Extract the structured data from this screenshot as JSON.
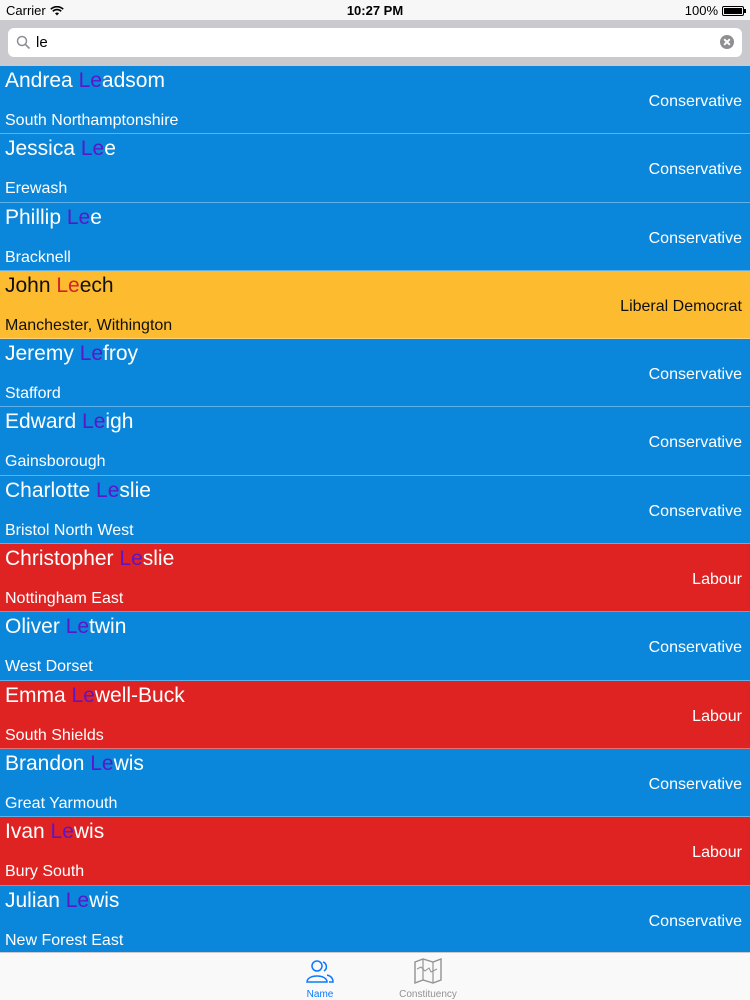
{
  "status": {
    "carrier": "Carrier",
    "time": "10:27 PM",
    "battery": "100%",
    "battery_level": 1.0
  },
  "search": {
    "query": "le"
  },
  "party_colors": {
    "Conservative": "#0a87da",
    "Labour": "#df2323",
    "Liberal Democrat": "#fdbb30"
  },
  "results": [
    {
      "name_pre": "Andrea ",
      "name_hl": "Le",
      "name_post": "adsom",
      "party": "Conservative",
      "constituency": "South Northamptonshire"
    },
    {
      "name_pre": "Jessica ",
      "name_hl": "Le",
      "name_post": "e",
      "party": "Conservative",
      "constituency": "Erewash"
    },
    {
      "name_pre": "Phillip ",
      "name_hl": "Le",
      "name_post": "e",
      "party": "Conservative",
      "constituency": "Bracknell"
    },
    {
      "name_pre": "John ",
      "name_hl": "Le",
      "name_post": "ech",
      "party": "Liberal Democrat",
      "constituency": "Manchester, Withington"
    },
    {
      "name_pre": "Jeremy ",
      "name_hl": "Le",
      "name_post": "froy",
      "party": "Conservative",
      "constituency": "Stafford"
    },
    {
      "name_pre": "Edward ",
      "name_hl": "Le",
      "name_post": "igh",
      "party": "Conservative",
      "constituency": "Gainsborough"
    },
    {
      "name_pre": "Charlotte ",
      "name_hl": "Le",
      "name_post": "slie",
      "party": "Conservative",
      "constituency": "Bristol North West"
    },
    {
      "name_pre": "Christopher ",
      "name_hl": "Le",
      "name_post": "slie",
      "party": "Labour",
      "constituency": "Nottingham East"
    },
    {
      "name_pre": "Oliver ",
      "name_hl": "Le",
      "name_post": "twin",
      "party": "Conservative",
      "constituency": "West Dorset"
    },
    {
      "name_pre": "Emma ",
      "name_hl": "Le",
      "name_post": "well-Buck",
      "party": "Labour",
      "constituency": "South Shields"
    },
    {
      "name_pre": "Brandon ",
      "name_hl": "Le",
      "name_post": "wis",
      "party": "Conservative",
      "constituency": "Great Yarmouth"
    },
    {
      "name_pre": "Ivan ",
      "name_hl": "Le",
      "name_post": "wis",
      "party": "Labour",
      "constituency": "Bury South"
    },
    {
      "name_pre": "Julian ",
      "name_hl": "Le",
      "name_post": "wis",
      "party": "Conservative",
      "constituency": "New Forest East"
    }
  ],
  "tabs": [
    {
      "label": "Name",
      "icon": "people-icon",
      "active": true
    },
    {
      "label": "Constituency",
      "icon": "map-icon",
      "active": false
    }
  ]
}
